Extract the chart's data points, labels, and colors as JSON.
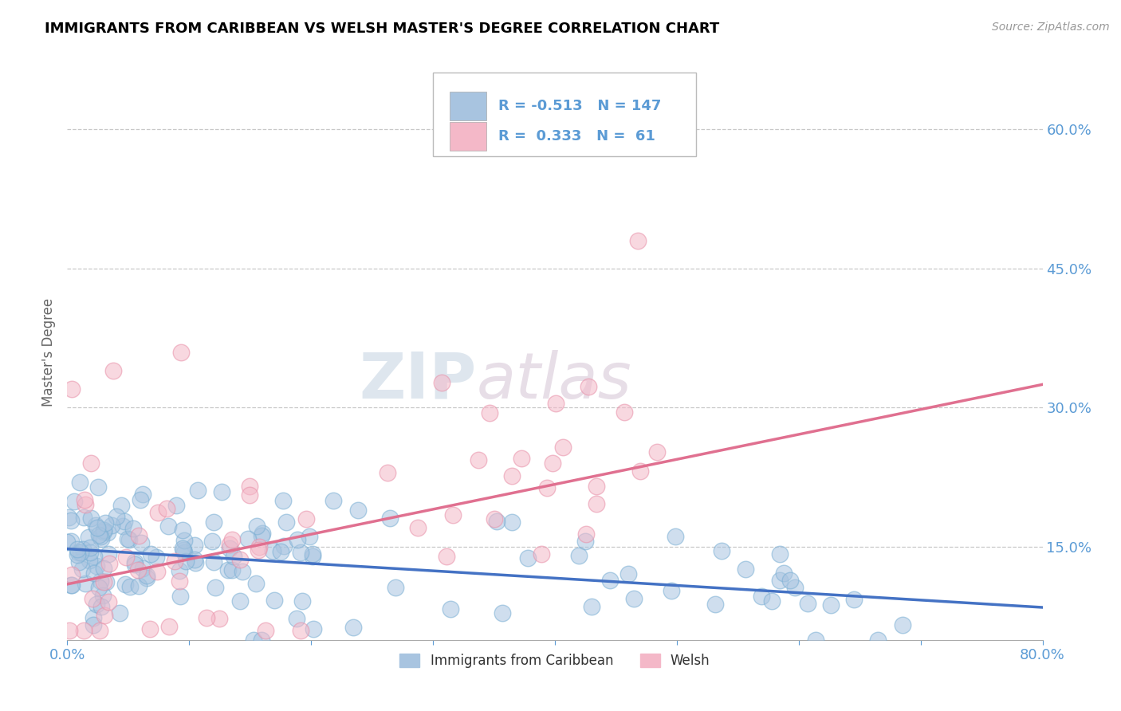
{
  "title": "IMMIGRANTS FROM CARIBBEAN VS WELSH MASTER'S DEGREE CORRELATION CHART",
  "source": "Source: ZipAtlas.com",
  "ylabel": "Master's Degree",
  "right_yticks": [
    15.0,
    30.0,
    45.0,
    60.0
  ],
  "xmin": 0.0,
  "xmax": 80.0,
  "ymin": 5.0,
  "ymax": 67.0,
  "series1_label": "Immigrants from Caribbean",
  "series1_color": "#a8c4e0",
  "series1_edge_color": "#7aafd4",
  "series1_line_color": "#4472c4",
  "series1_R": -0.513,
  "series1_N": 147,
  "series2_label": "Welsh",
  "series2_color": "#f4b8c8",
  "series2_edge_color": "#e890a8",
  "series2_line_color": "#e07090",
  "series2_R": 0.333,
  "series2_N": 61,
  "watermark_zip": "ZIP",
  "watermark_atlas": "atlas",
  "background_color": "#ffffff",
  "title_color": "#000000",
  "axis_label_color": "#5b9bd5",
  "grid_color": "#c8c8c8",
  "legend_box_color1": "#a8c4e0",
  "legend_box_color2": "#f4b8c8",
  "y1_line_start": 14.8,
  "y1_line_end": 8.5,
  "y2_line_start": 11.0,
  "y2_line_end": 32.5
}
